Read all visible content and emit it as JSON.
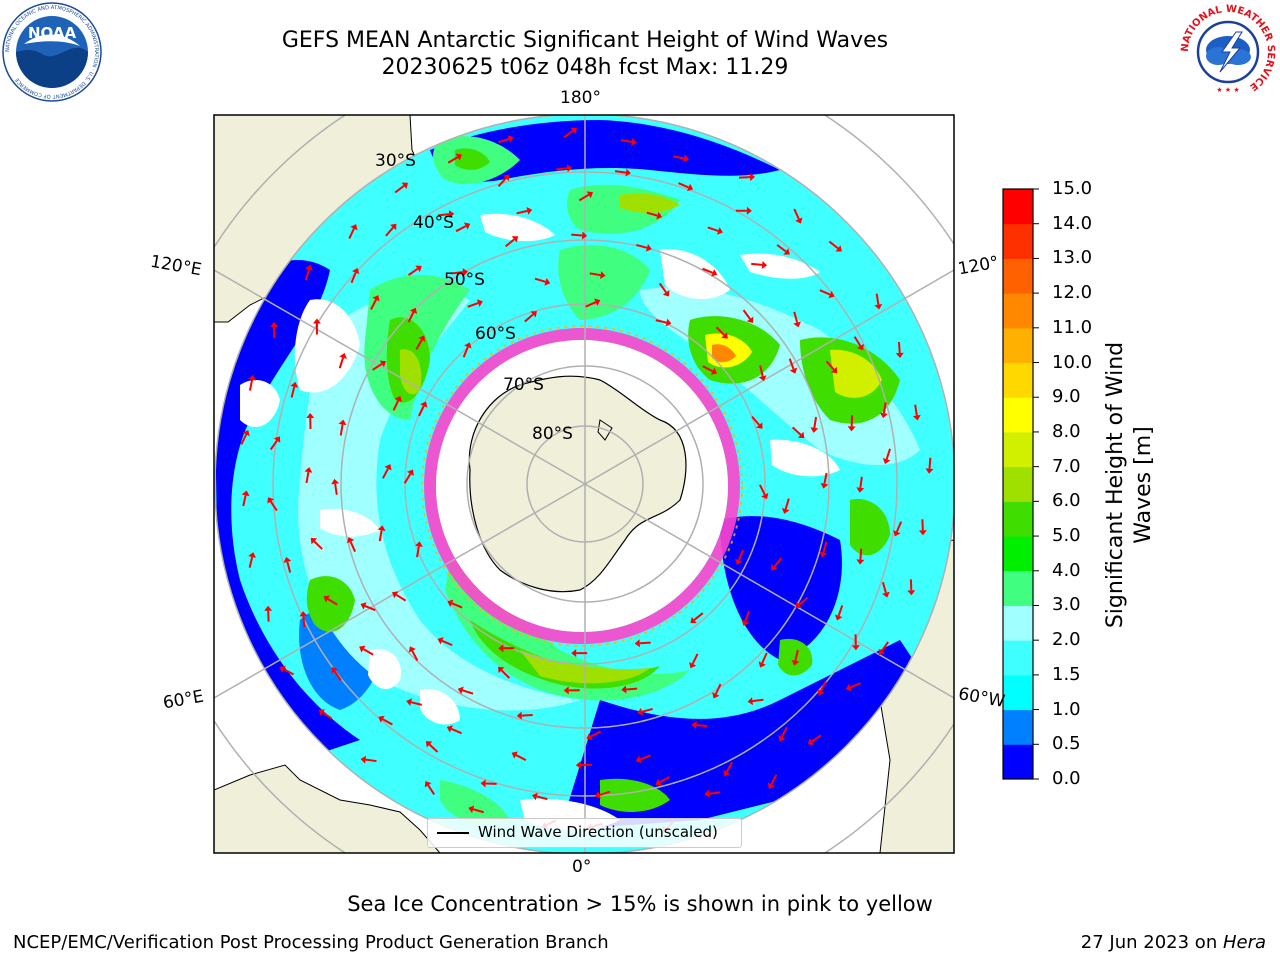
{
  "header": {
    "title_line1": "GEFS MEAN Antarctic Significant Height of Wind Waves",
    "title_line2": "20230625 t06z 048h fcst   Max: 11.29"
  },
  "map": {
    "projection": "south-polar-stereographic",
    "longitude_labels": [
      "180°",
      "120°E",
      "120°",
      "60°E",
      "60°W",
      "0°"
    ],
    "latitude_labels": [
      "30°S",
      "40°S",
      "50°S",
      "60°S",
      "70°S",
      "80°S"
    ],
    "legend_text": "Wind Wave Direction (unscaled)",
    "colors": {
      "land": "#efefda",
      "ocean_no_data": "#ffffff",
      "wind_arrow": "#ff0000",
      "sea_ice": "#ff44cc",
      "grid": "#b0b0b0"
    }
  },
  "colorbar": {
    "label": "Significant Height of Wind Waves [m]",
    "ticks": [
      "0.0",
      "0.5",
      "1.0",
      "1.5",
      "2.0",
      "3.0",
      "4.0",
      "5.0",
      "6.0",
      "7.0",
      "8.0",
      "9.0",
      "10.0",
      "11.0",
      "12.0",
      "13.0",
      "14.0",
      "15.0"
    ],
    "colors": [
      "#0000ff",
      "#0080ff",
      "#00ffff",
      "#40ffff",
      "#a0ffff",
      "#40ff80",
      "#00ee00",
      "#40dd00",
      "#a0e000",
      "#d0f000",
      "#ffff00",
      "#ffd800",
      "#ffb000",
      "#ff8800",
      "#ff6000",
      "#ff3000",
      "#ff0000"
    ]
  },
  "notes": {
    "sea_ice": "Sea Ice Concentration > 15% is shown in pink to yellow"
  },
  "footer": {
    "left": "NCEP/EMC/Verification Post Processing Product Generation Branch",
    "date": "27 Jun 2023 on ",
    "machine": "Hera"
  },
  "logos": {
    "noaa_text": "NOAA",
    "noaa_ring": "NATIONAL OCEANIC AND ATMOSPHERIC ADMINISTRATION · U.S. DEPARTMENT OF COMMERCE",
    "nws_ring": "NATIONAL WEATHER SERVICE"
  }
}
